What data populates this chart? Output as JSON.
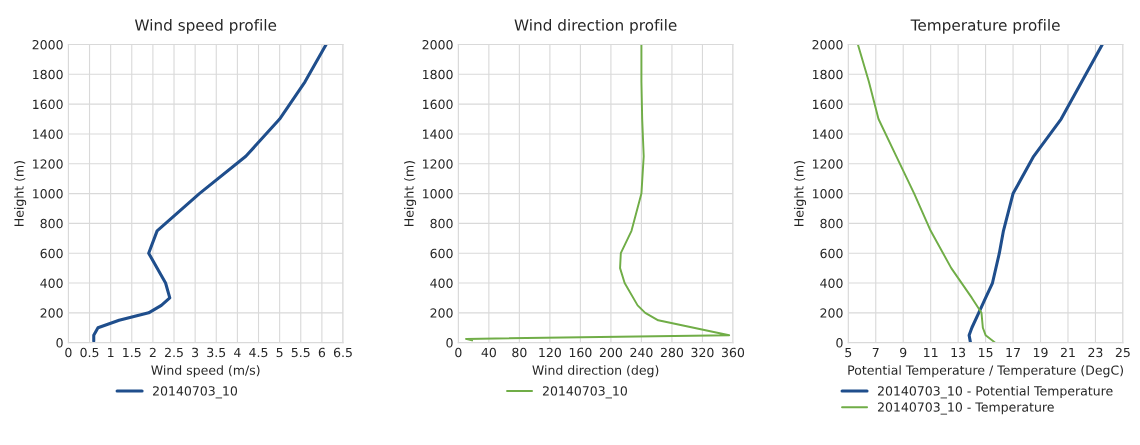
{
  "chart_data": [
    {
      "type": "line",
      "title": "Wind speed profile",
      "xlabel": "Wind speed (m/s)",
      "ylabel": "Height (m)",
      "xlim": [
        0,
        6.5
      ],
      "xticks": [
        0,
        0.5,
        1,
        1.5,
        2,
        2.5,
        3,
        3.5,
        4,
        4.5,
        5,
        5.5,
        6,
        6.5
      ],
      "ylim": [
        0,
        2000
      ],
      "yticks": [
        0,
        200,
        400,
        600,
        800,
        1000,
        1200,
        1400,
        1600,
        1800,
        2000
      ],
      "grid": true,
      "legend": "bottom",
      "series": [
        {
          "name": "20140703_10",
          "color": "#1f4e8c",
          "x": [
            0.6,
            0.6,
            0.7,
            1.2,
            1.9,
            2.2,
            2.4,
            2.3,
            1.9,
            2.1,
            3.1,
            4.2,
            5.0,
            5.6,
            6.1
          ],
          "values": [
            10,
            50,
            100,
            150,
            200,
            250,
            300,
            400,
            600,
            750,
            1000,
            1250,
            1500,
            1750,
            2000
          ]
        }
      ]
    },
    {
      "type": "line",
      "title": "Wind direction profile",
      "xlabel": "Wind direction (deg)",
      "ylabel": "Height (m)",
      "xlim": [
        0,
        360
      ],
      "xticks": [
        0,
        40,
        80,
        120,
        160,
        200,
        240,
        280,
        320,
        360
      ],
      "ylim": [
        0,
        2000
      ],
      "yticks": [
        0,
        200,
        400,
        600,
        800,
        1000,
        1200,
        1400,
        1600,
        1800,
        2000
      ],
      "grid": true,
      "legend": "bottom",
      "series": [
        {
          "name": "20140703_10",
          "color": "#70ad47",
          "x": [
            18,
            10,
            355,
            262,
            245,
            235,
            218,
            212,
            213,
            227,
            240,
            243,
            241,
            240,
            240
          ],
          "values": [
            15,
            25,
            50,
            150,
            200,
            250,
            400,
            500,
            600,
            750,
            1000,
            1250,
            1500,
            1750,
            2000
          ]
        }
      ]
    },
    {
      "type": "line",
      "title": "Temperature profile",
      "xlabel": "Potential Temperature / Temperature (DegC)",
      "ylabel": "Height (m)",
      "xlim": [
        5,
        25
      ],
      "xticks": [
        5,
        7,
        9,
        11,
        13,
        15,
        17,
        19,
        21,
        23,
        25
      ],
      "ylim": [
        0,
        2000
      ],
      "yticks": [
        0,
        200,
        400,
        600,
        800,
        1000,
        1200,
        1400,
        1600,
        1800,
        2000
      ],
      "grid": true,
      "legend": "bottom",
      "series": [
        {
          "name": "20140703_10 - Potential Temperature",
          "color": "#1f4e8c",
          "x": [
            13.9,
            13.8,
            14.0,
            14.5,
            15.0,
            15.5,
            16.0,
            16.3,
            17.0,
            18.5,
            20.5,
            22.0,
            23.5
          ],
          "values": [
            0,
            50,
            100,
            200,
            300,
            400,
            600,
            750,
            1000,
            1250,
            1500,
            1750,
            2000
          ]
        },
        {
          "name": "20140703_10 - Temperature",
          "color": "#70ad47",
          "x": [
            15.7,
            15.0,
            14.8,
            14.7,
            14.0,
            12.5,
            11.0,
            9.8,
            8.5,
            7.2,
            6.5,
            5.7
          ],
          "values": [
            0,
            50,
            100,
            200,
            300,
            500,
            750,
            1000,
            1250,
            1500,
            1750,
            2000
          ]
        }
      ]
    }
  ]
}
